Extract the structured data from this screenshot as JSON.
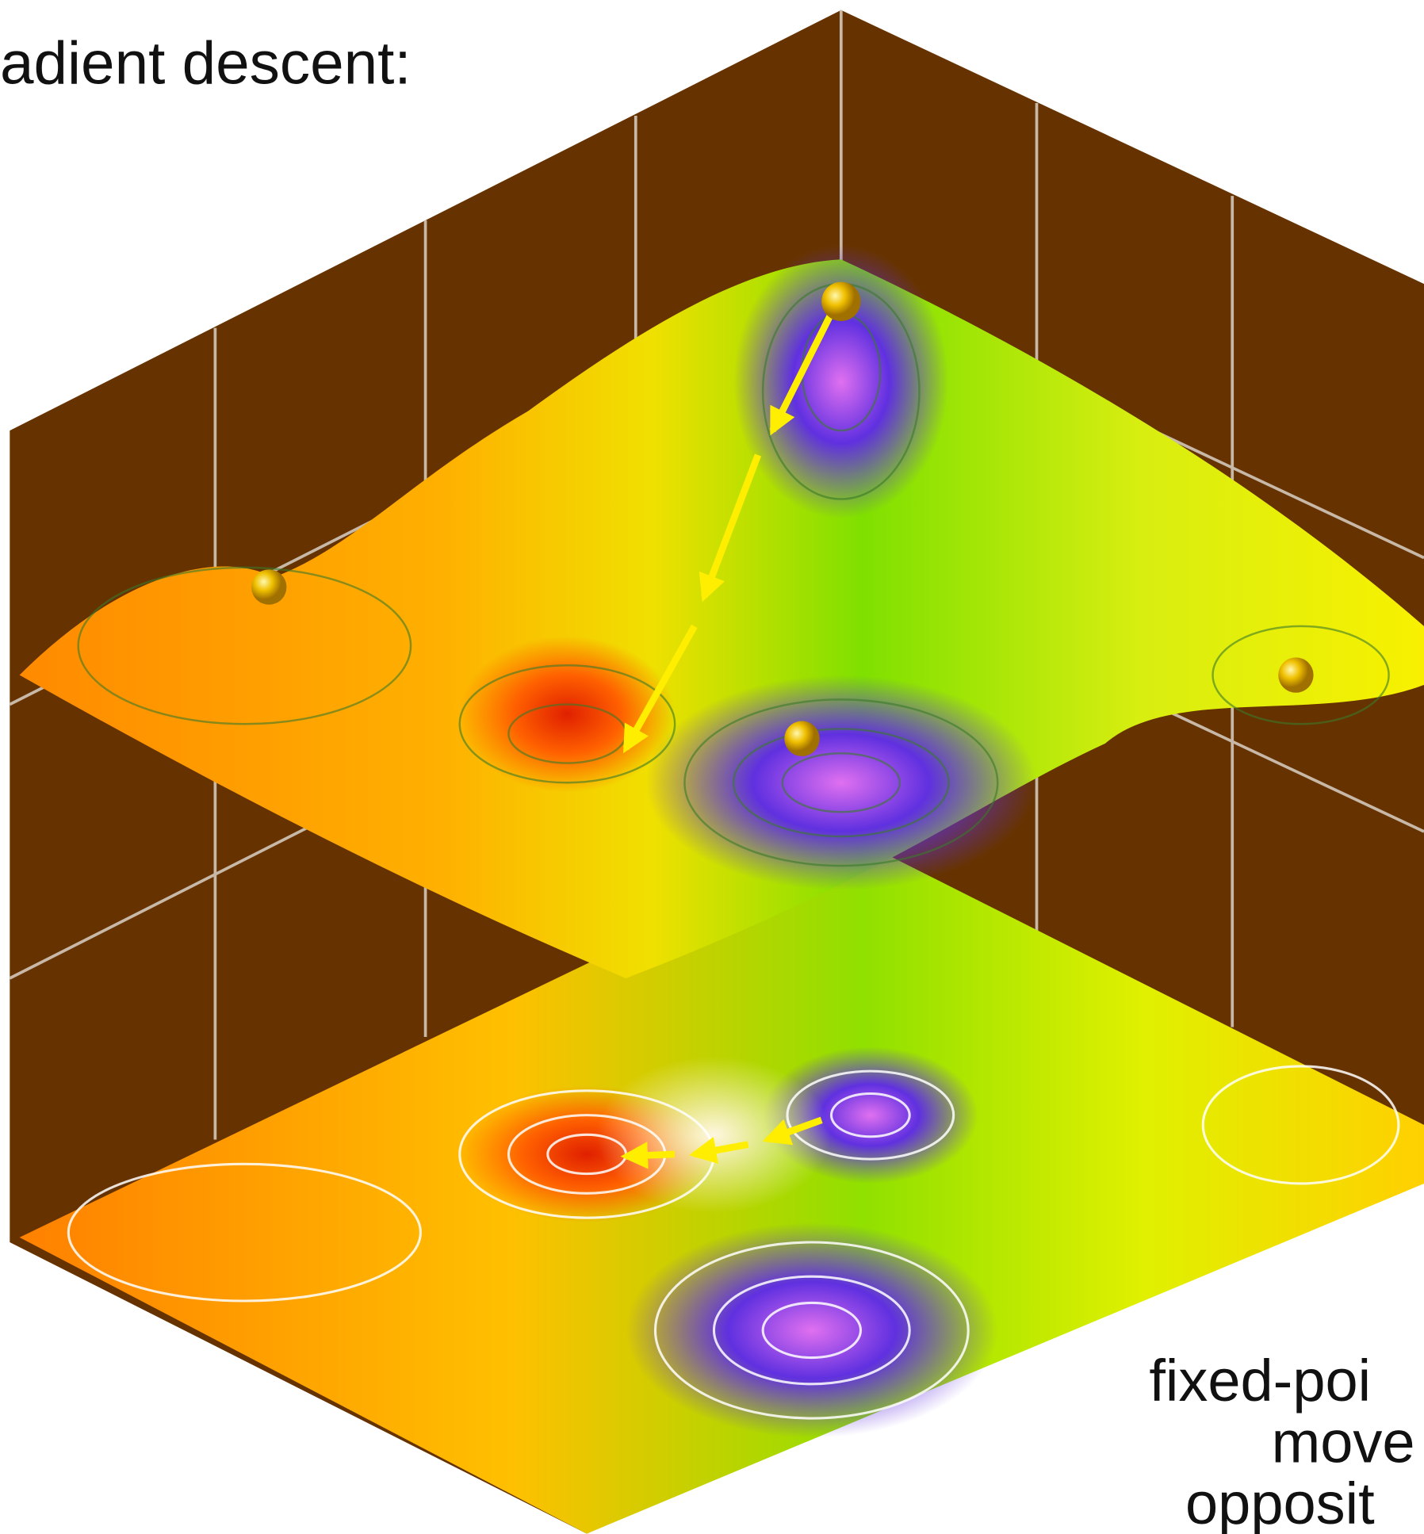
{
  "heading": "adient descent:",
  "caption": [
    "fixed-poi",
    "move",
    "opposit"
  ]
}
